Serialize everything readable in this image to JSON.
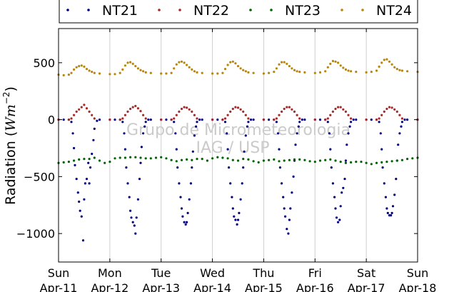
{
  "chart_data": {
    "type": "scatter",
    "ylabel_text": "Radiation (",
    "ylabel_unit_base": "Wm",
    "ylabel_unit_exp": "−2",
    "ylabel_close": ")",
    "ylim": [
      -1250,
      800
    ],
    "xlim": [
      0,
      7
    ],
    "yticks": [
      500,
      0,
      -500,
      -1000
    ],
    "ytick_labels": [
      "500",
      "0",
      "−500",
      "−1000"
    ],
    "xticks": [
      0,
      1,
      2,
      3,
      4,
      5,
      6,
      7
    ],
    "xtick_labels_top": [
      "Sun",
      "Mon",
      "Tue",
      "Wed",
      "Thu",
      "Fri",
      "Sat",
      "Sun"
    ],
    "xtick_labels_bottom": [
      "Apr-11",
      "Apr-12",
      "Apr-13",
      "Apr-14",
      "Apr-15",
      "Apr-16",
      "Apr-17",
      "Apr-18"
    ],
    "grid": "vertical",
    "legend_position": "top",
    "watermark": [
      "Grupo de Micrometeorologia",
      "IAG / USP"
    ],
    "series": [
      {
        "name": "NT21",
        "color": "#000080",
        "x": [
          0.0,
          0.1,
          0.2,
          0.25,
          0.28,
          0.3,
          0.32,
          0.35,
          0.38,
          0.4,
          0.42,
          0.45,
          0.48,
          0.5,
          0.52,
          0.55,
          0.58,
          0.6,
          0.62,
          0.65,
          0.68,
          0.7,
          0.75,
          0.8,
          1.0,
          1.1,
          1.2,
          1.25,
          1.28,
          1.3,
          1.32,
          1.35,
          1.38,
          1.4,
          1.42,
          1.45,
          1.48,
          1.5,
          1.52,
          1.55,
          1.58,
          1.6,
          1.62,
          1.65,
          1.68,
          1.7,
          1.75,
          1.8,
          2.0,
          2.1,
          2.2,
          2.25,
          2.28,
          2.3,
          2.32,
          2.35,
          2.38,
          2.4,
          2.42,
          2.45,
          2.48,
          2.5,
          2.52,
          2.55,
          2.58,
          2.6,
          2.62,
          2.65,
          2.68,
          2.7,
          2.75,
          2.8,
          3.0,
          3.1,
          3.2,
          3.25,
          3.28,
          3.3,
          3.32,
          3.35,
          3.38,
          3.4,
          3.42,
          3.45,
          3.48,
          3.5,
          3.52,
          3.55,
          3.58,
          3.6,
          3.62,
          3.65,
          3.68,
          3.7,
          3.75,
          3.8,
          4.0,
          4.1,
          4.2,
          4.25,
          4.28,
          4.3,
          4.32,
          4.35,
          4.38,
          4.4,
          4.42,
          4.45,
          4.48,
          4.5,
          4.52,
          4.55,
          4.58,
          4.6,
          4.62,
          4.65,
          4.68,
          4.7,
          4.75,
          4.8,
          5.0,
          5.1,
          5.2,
          5.25,
          5.28,
          5.3,
          5.32,
          5.35,
          5.38,
          5.4,
          5.42,
          5.45,
          5.48,
          5.5,
          5.52,
          5.55,
          5.58,
          5.6,
          5.62,
          5.65,
          5.68,
          5.7,
          5.75,
          5.8,
          6.0,
          6.1,
          6.2,
          6.25,
          6.28,
          6.3,
          6.32,
          6.35,
          6.38,
          6.4,
          6.42,
          6.45,
          6.48,
          6.5,
          6.52,
          6.55,
          6.58,
          6.6,
          6.62,
          6.65,
          6.68,
          6.7,
          6.75,
          6.8,
          7.0
        ],
        "y": [
          0,
          0,
          0,
          -20,
          -120,
          -250,
          -400,
          -520,
          -640,
          -720,
          -800,
          -850,
          -1060,
          -700,
          -560,
          -520,
          -380,
          -560,
          -420,
          -300,
          -180,
          -80,
          -10,
          0,
          0,
          0,
          0,
          -20,
          -120,
          -260,
          -420,
          -560,
          -680,
          -800,
          -860,
          -900,
          -930,
          -1000,
          -860,
          -700,
          -520,
          -380,
          -240,
          -120,
          -60,
          -20,
          0,
          0,
          0,
          0,
          0,
          -20,
          -120,
          -260,
          -420,
          -560,
          -680,
          -780,
          -850,
          -900,
          -920,
          -900,
          -820,
          -700,
          -560,
          -420,
          -280,
          -140,
          -60,
          -20,
          0,
          0,
          0,
          0,
          0,
          -20,
          -120,
          -260,
          -420,
          -560,
          -680,
          -780,
          -850,
          -880,
          -920,
          -880,
          -820,
          -700,
          -560,
          -420,
          -280,
          -140,
          -60,
          -20,
          0,
          0,
          0,
          0,
          0,
          -20,
          -120,
          -260,
          -420,
          -560,
          -680,
          -780,
          -850,
          -960,
          -1000,
          -880,
          -780,
          -640,
          -500,
          -360,
          -220,
          -120,
          -60,
          -20,
          0,
          0,
          0,
          0,
          0,
          -20,
          -120,
          -260,
          -420,
          -560,
          -680,
          -780,
          -860,
          -900,
          -880,
          -760,
          -640,
          -600,
          -520,
          -360,
          -220,
          -120,
          -60,
          -20,
          0,
          0,
          0,
          0,
          0,
          -20,
          -120,
          -260,
          -420,
          -560,
          -680,
          -780,
          -820,
          -840,
          -840,
          -820,
          -760,
          -660,
          -520,
          -360,
          -220,
          -120,
          -60,
          -20,
          0,
          0,
          0
        ]
      },
      {
        "name": "NT22",
        "color": "#a52a2a",
        "x": [
          0.0,
          0.2,
          0.25,
          0.3,
          0.35,
          0.4,
          0.45,
          0.5,
          0.55,
          0.6,
          0.65,
          0.7,
          1.0,
          1.2,
          1.25,
          1.3,
          1.35,
          1.4,
          1.45,
          1.5,
          1.55,
          1.6,
          1.65,
          1.7,
          2.0,
          2.2,
          2.25,
          2.3,
          2.35,
          2.4,
          2.45,
          2.5,
          2.55,
          2.6,
          2.65,
          2.7,
          3.0,
          3.2,
          3.25,
          3.3,
          3.35,
          3.4,
          3.45,
          3.5,
          3.55,
          3.6,
          3.65,
          3.7,
          4.0,
          4.2,
          4.25,
          4.3,
          4.35,
          4.4,
          4.45,
          4.5,
          4.55,
          4.6,
          4.65,
          4.7,
          5.0,
          5.2,
          5.25,
          5.3,
          5.35,
          5.4,
          5.45,
          5.5,
          5.55,
          5.6,
          5.65,
          5.7,
          6.0,
          6.2,
          6.25,
          6.3,
          6.35,
          6.4,
          6.45,
          6.5,
          6.55,
          6.6,
          6.65,
          6.7,
          7.0
        ],
        "y": [
          0,
          0,
          10,
          40,
          70,
          90,
          110,
          130,
          100,
          70,
          40,
          10,
          0,
          0,
          10,
          40,
          70,
          95,
          110,
          120,
          100,
          75,
          40,
          10,
          0,
          0,
          10,
          40,
          70,
          95,
          110,
          105,
          90,
          70,
          40,
          10,
          0,
          0,
          10,
          40,
          70,
          95,
          110,
          105,
          90,
          70,
          40,
          10,
          0,
          0,
          10,
          40,
          70,
          95,
          110,
          110,
          90,
          70,
          40,
          10,
          0,
          0,
          10,
          40,
          70,
          95,
          110,
          110,
          90,
          70,
          40,
          10,
          0,
          0,
          10,
          40,
          70,
          95,
          110,
          105,
          90,
          70,
          40,
          10,
          0
        ]
      },
      {
        "name": "NT23",
        "color": "#006400",
        "x": [
          0.0,
          0.1,
          0.2,
          0.3,
          0.4,
          0.5,
          0.6,
          0.7,
          0.8,
          0.9,
          1.0,
          1.1,
          1.2,
          1.3,
          1.4,
          1.5,
          1.6,
          1.7,
          1.8,
          1.9,
          2.0,
          2.1,
          2.2,
          2.3,
          2.4,
          2.5,
          2.6,
          2.7,
          2.8,
          2.9,
          3.0,
          3.1,
          3.2,
          3.3,
          3.4,
          3.5,
          3.6,
          3.7,
          3.8,
          3.9,
          4.0,
          4.1,
          4.2,
          4.3,
          4.4,
          4.5,
          4.6,
          4.7,
          4.8,
          4.9,
          5.0,
          5.1,
          5.2,
          5.3,
          5.4,
          5.5,
          5.6,
          5.7,
          5.8,
          5.9,
          6.0,
          6.1,
          6.2,
          6.3,
          6.4,
          6.5,
          6.6,
          6.7,
          6.8,
          6.9,
          7.0
        ],
        "y": [
          -380,
          -375,
          -370,
          -360,
          -350,
          -345,
          -345,
          -335,
          -360,
          -380,
          -370,
          -340,
          -335,
          -335,
          -330,
          -330,
          -335,
          -340,
          -340,
          -335,
          -330,
          -340,
          -355,
          -365,
          -355,
          -350,
          -355,
          -345,
          -345,
          -360,
          -340,
          -330,
          -335,
          -340,
          -355,
          -360,
          -345,
          -350,
          -365,
          -375,
          -360,
          -355,
          -350,
          -365,
          -360,
          -355,
          -350,
          -350,
          -355,
          -365,
          -370,
          -360,
          -355,
          -350,
          -360,
          -370,
          -380,
          -375,
          -370,
          -370,
          -380,
          -390,
          -380,
          -375,
          -370,
          -365,
          -360,
          -355,
          -345,
          -340,
          -335
        ]
      },
      {
        "name": "NT24",
        "color": "#b8860b",
        "x": [
          0.0,
          0.1,
          0.2,
          0.25,
          0.3,
          0.35,
          0.4,
          0.45,
          0.5,
          0.55,
          0.6,
          0.65,
          0.7,
          0.8,
          1.0,
          1.1,
          1.2,
          1.25,
          1.3,
          1.35,
          1.4,
          1.45,
          1.5,
          1.55,
          1.6,
          1.65,
          1.7,
          1.8,
          2.0,
          2.1,
          2.2,
          2.25,
          2.3,
          2.35,
          2.4,
          2.45,
          2.5,
          2.55,
          2.6,
          2.65,
          2.7,
          2.8,
          3.0,
          3.1,
          3.2,
          3.25,
          3.3,
          3.35,
          3.4,
          3.45,
          3.5,
          3.55,
          3.6,
          3.65,
          3.7,
          3.8,
          4.0,
          4.1,
          4.2,
          4.25,
          4.3,
          4.35,
          4.4,
          4.45,
          4.5,
          4.55,
          4.6,
          4.65,
          4.7,
          4.8,
          5.0,
          5.1,
          5.2,
          5.25,
          5.3,
          5.35,
          5.4,
          5.45,
          5.5,
          5.55,
          5.6,
          5.65,
          5.7,
          5.8,
          6.0,
          6.1,
          6.2,
          6.25,
          6.3,
          6.35,
          6.4,
          6.45,
          6.5,
          6.55,
          6.6,
          6.65,
          6.7,
          6.8,
          7.0
        ],
        "y": [
          395,
          390,
          395,
          410,
          440,
          460,
          470,
          475,
          465,
          445,
          430,
          420,
          410,
          405,
          400,
          400,
          410,
          440,
          475,
          500,
          505,
          490,
          470,
          450,
          435,
          425,
          415,
          410,
          405,
          405,
          410,
          450,
          485,
          505,
          510,
          500,
          480,
          460,
          440,
          425,
          415,
          410,
          405,
          405,
          410,
          445,
          480,
          505,
          510,
          495,
          470,
          450,
          435,
          425,
          415,
          410,
          405,
          410,
          420,
          450,
          485,
          505,
          505,
          490,
          470,
          450,
          435,
          425,
          420,
          415,
          410,
          415,
          425,
          460,
          490,
          515,
          510,
          500,
          475,
          455,
          440,
          430,
          425,
          420,
          415,
          420,
          430,
          465,
          500,
          525,
          530,
          510,
          485,
          460,
          445,
          435,
          430,
          425,
          420
        ]
      }
    ]
  }
}
